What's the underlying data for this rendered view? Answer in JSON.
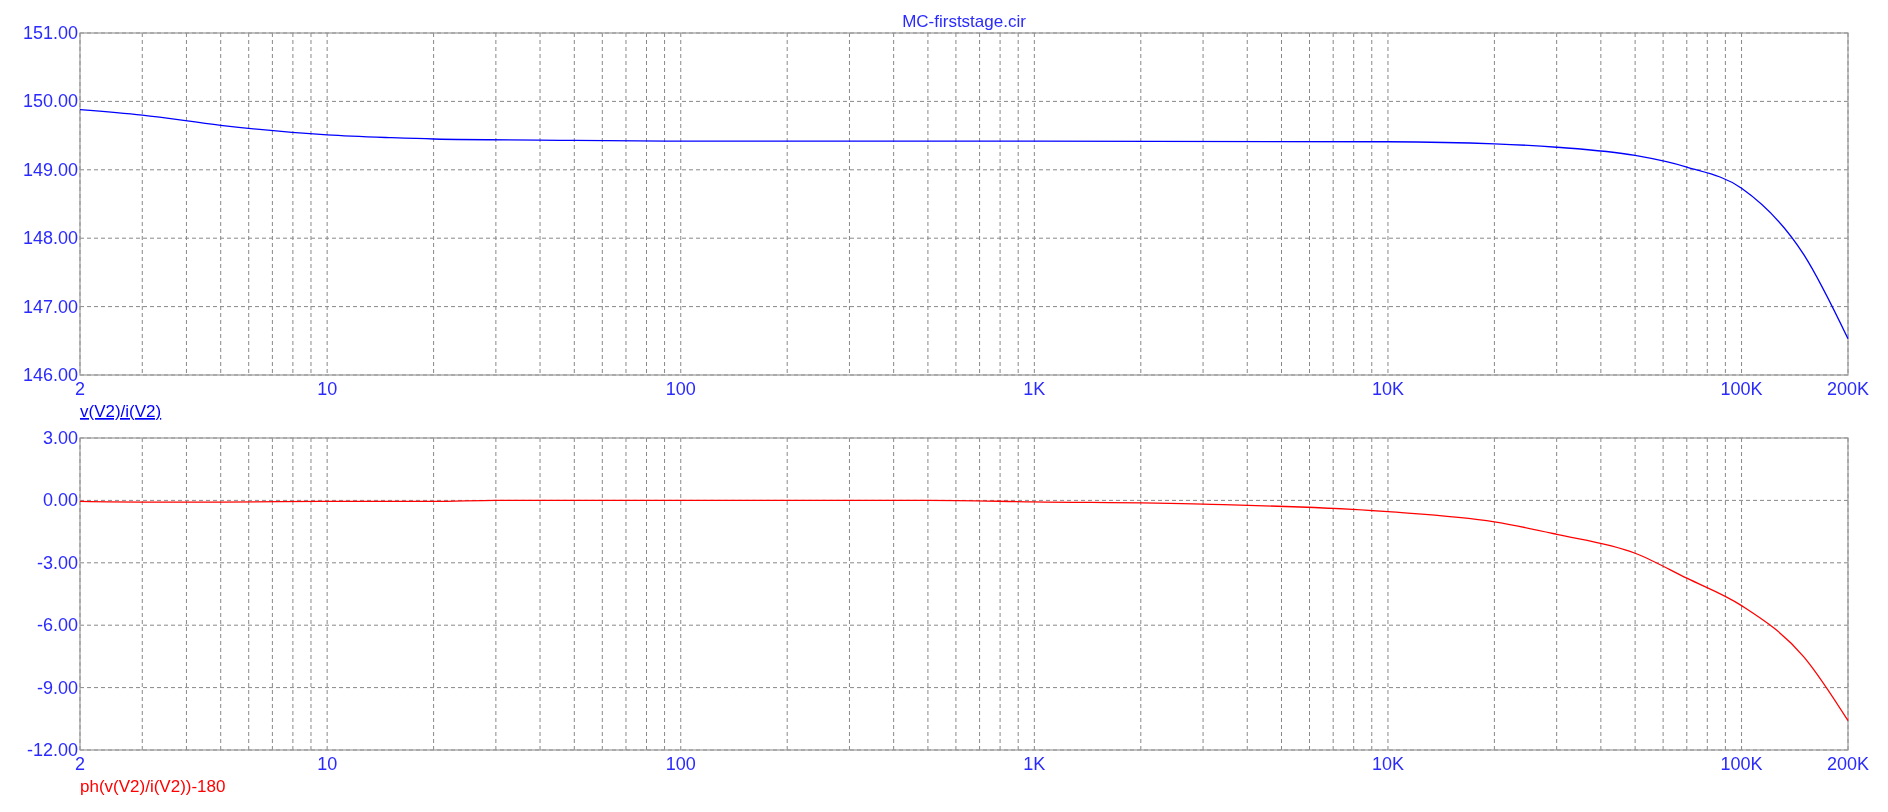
{
  "chart_data": [
    {
      "type": "line",
      "title": "MC-firststage.cir",
      "log": "x",
      "grid": true,
      "legend": "bottom left",
      "line_style": "solid",
      "x": [
        2,
        3,
        5,
        10,
        15,
        20,
        50,
        100,
        1000,
        10000,
        20000,
        30000,
        50000,
        70000,
        100000,
        150000,
        200000
      ],
      "series": [
        {
          "name": "v(V2)/i(V2)",
          "color": "#0000ff",
          "values": [
            149.88,
            149.8,
            149.65,
            149.51,
            149.47,
            149.45,
            149.43,
            149.42,
            149.42,
            149.41,
            149.38,
            149.33,
            149.21,
            149.04,
            148.73,
            147.76,
            146.53
          ]
        }
      ],
      "xlim": [
        2,
        200000
      ],
      "xticks": [
        {
          "value": 2,
          "label": "2"
        },
        {
          "value": 3,
          "label": null
        },
        {
          "value": 4,
          "label": null
        },
        {
          "value": 5,
          "label": null
        },
        {
          "value": 6,
          "label": null
        },
        {
          "value": 7,
          "label": null
        },
        {
          "value": 8,
          "label": null
        },
        {
          "value": 9,
          "label": null
        },
        {
          "value": 10,
          "label": "10"
        },
        {
          "value": 20,
          "label": null
        },
        {
          "value": 30,
          "label": null
        },
        {
          "value": 40,
          "label": null
        },
        {
          "value": 50,
          "label": null
        },
        {
          "value": 60,
          "label": null
        },
        {
          "value": 70,
          "label": null
        },
        {
          "value": 80,
          "label": null
        },
        {
          "value": 90,
          "label": null
        },
        {
          "value": 100,
          "label": "100"
        },
        {
          "value": 200,
          "label": null
        },
        {
          "value": 300,
          "label": null
        },
        {
          "value": 400,
          "label": null
        },
        {
          "value": 500,
          "label": null
        },
        {
          "value": 600,
          "label": null
        },
        {
          "value": 700,
          "label": null
        },
        {
          "value": 800,
          "label": null
        },
        {
          "value": 900,
          "label": null
        },
        {
          "value": 1000,
          "label": "1K"
        },
        {
          "value": 2000,
          "label": null
        },
        {
          "value": 3000,
          "label": null
        },
        {
          "value": 4000,
          "label": null
        },
        {
          "value": 5000,
          "label": null
        },
        {
          "value": 6000,
          "label": null
        },
        {
          "value": 7000,
          "label": null
        },
        {
          "value": 8000,
          "label": null
        },
        {
          "value": 9000,
          "label": null
        },
        {
          "value": 10000,
          "label": "10K"
        },
        {
          "value": 20000,
          "label": null
        },
        {
          "value": 30000,
          "label": null
        },
        {
          "value": 40000,
          "label": null
        },
        {
          "value": 50000,
          "label": null
        },
        {
          "value": 60000,
          "label": null
        },
        {
          "value": 70000,
          "label": null
        },
        {
          "value": 80000,
          "label": null
        },
        {
          "value": 90000,
          "label": null
        },
        {
          "value": 100000,
          "label": "100K"
        },
        {
          "value": 200000,
          "label": "200K"
        }
      ],
      "ylim": [
        146,
        151
      ],
      "yticks": [
        {
          "value": 146,
          "label": "146.00"
        },
        {
          "value": 147,
          "label": "147.00"
        },
        {
          "value": 148,
          "label": "148.00"
        },
        {
          "value": 149,
          "label": "149.00"
        },
        {
          "value": 150,
          "label": "150.00"
        },
        {
          "value": 151,
          "label": "151.00"
        }
      ]
    },
    {
      "type": "line",
      "log": "x",
      "grid": true,
      "legend": "bottom left",
      "line_style": "solid",
      "x": [
        2,
        3,
        5,
        10,
        20,
        30,
        100,
        500,
        1000,
        3000,
        10000,
        20000,
        30000,
        50000,
        70000,
        100000,
        150000,
        200000
      ],
      "series": [
        {
          "name": "ph(v(V2)/i(V2))-180",
          "color": "#ff0000",
          "values": [
            -0.05,
            -0.08,
            -0.08,
            -0.05,
            -0.05,
            0,
            0,
            0,
            -0.07,
            -0.18,
            -0.54,
            -1.03,
            -1.63,
            -2.54,
            -3.74,
            -5.06,
            -7.52,
            -10.59
          ]
        }
      ],
      "xlim": [
        2,
        200000
      ],
      "xticks": [
        {
          "value": 2,
          "label": "2"
        },
        {
          "value": 3,
          "label": null
        },
        {
          "value": 4,
          "label": null
        },
        {
          "value": 5,
          "label": null
        },
        {
          "value": 6,
          "label": null
        },
        {
          "value": 7,
          "label": null
        },
        {
          "value": 8,
          "label": null
        },
        {
          "value": 9,
          "label": null
        },
        {
          "value": 10,
          "label": "10"
        },
        {
          "value": 20,
          "label": null
        },
        {
          "value": 30,
          "label": null
        },
        {
          "value": 40,
          "label": null
        },
        {
          "value": 50,
          "label": null
        },
        {
          "value": 60,
          "label": null
        },
        {
          "value": 70,
          "label": null
        },
        {
          "value": 80,
          "label": null
        },
        {
          "value": 90,
          "label": null
        },
        {
          "value": 100,
          "label": "100"
        },
        {
          "value": 200,
          "label": null
        },
        {
          "value": 300,
          "label": null
        },
        {
          "value": 400,
          "label": null
        },
        {
          "value": 500,
          "label": null
        },
        {
          "value": 600,
          "label": null
        },
        {
          "value": 700,
          "label": null
        },
        {
          "value": 800,
          "label": null
        },
        {
          "value": 900,
          "label": null
        },
        {
          "value": 1000,
          "label": "1K"
        },
        {
          "value": 2000,
          "label": null
        },
        {
          "value": 3000,
          "label": null
        },
        {
          "value": 4000,
          "label": null
        },
        {
          "value": 5000,
          "label": null
        },
        {
          "value": 6000,
          "label": null
        },
        {
          "value": 7000,
          "label": null
        },
        {
          "value": 8000,
          "label": null
        },
        {
          "value": 9000,
          "label": null
        },
        {
          "value": 10000,
          "label": "10K"
        },
        {
          "value": 20000,
          "label": null
        },
        {
          "value": 30000,
          "label": null
        },
        {
          "value": 40000,
          "label": null
        },
        {
          "value": 50000,
          "label": null
        },
        {
          "value": 60000,
          "label": null
        },
        {
          "value": 70000,
          "label": null
        },
        {
          "value": 80000,
          "label": null
        },
        {
          "value": 90000,
          "label": null
        },
        {
          "value": 100000,
          "label": "100K"
        },
        {
          "value": 200000,
          "label": "200K"
        }
      ],
      "ylim": [
        -12,
        3
      ],
      "yticks": [
        {
          "value": -12,
          "label": "-12.00"
        },
        {
          "value": -9,
          "label": "-9.00"
        },
        {
          "value": -6,
          "label": "-6.00"
        },
        {
          "value": -3,
          "label": "-3.00"
        },
        {
          "value": 0,
          "label": "0.00"
        },
        {
          "value": 3,
          "label": "3.00"
        }
      ]
    }
  ]
}
